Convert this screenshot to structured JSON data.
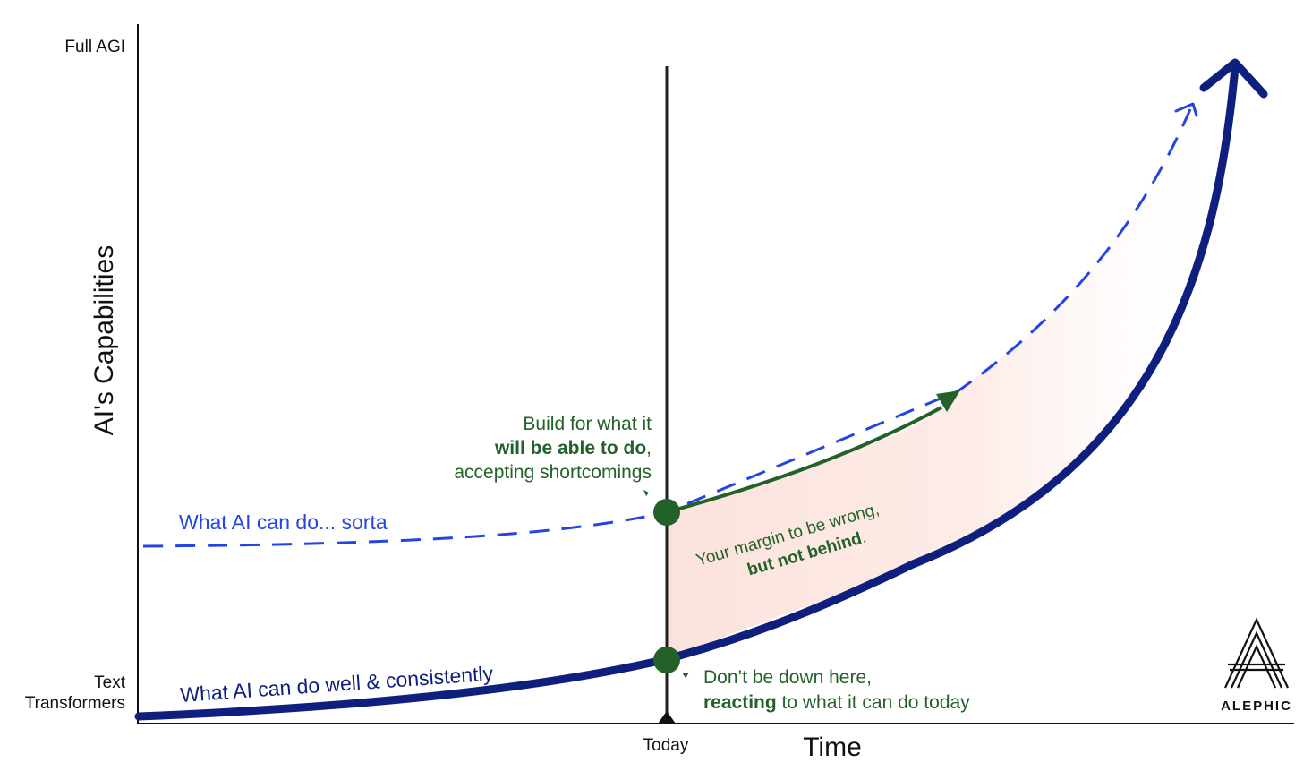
{
  "axes": {
    "y_title": "AI's Capabilities",
    "y_top_label": "Full AGI",
    "y_bottom_label_line1": "Text",
    "y_bottom_label_line2": "Transformers",
    "x_title": "Time",
    "x_today_label": "Today"
  },
  "curves": {
    "sorta_label": "What AI can do... sorta",
    "consistent_label": "What AI can do well & consistently"
  },
  "annotations": {
    "build_line1": "Build for what it",
    "build_line2_bold": "will be able to do",
    "build_line2_suffix": ",",
    "build_line3": "accepting shortcomings",
    "margin_line1": "Your margin to be wrong,",
    "margin_line2_bold": "but not behind",
    "margin_line2_suffix": ".",
    "down_line1": "Don’t be down here,",
    "down_line2_bold": "reacting",
    "down_line2_rest": " to what it can do today"
  },
  "logo": {
    "text": "ALEPHIC"
  },
  "colors": {
    "axis": "#111111",
    "navy": "#0f1f7d",
    "blue_dashed": "#2444e6",
    "green": "#236129",
    "margin_fill": "#fde9e4"
  }
}
